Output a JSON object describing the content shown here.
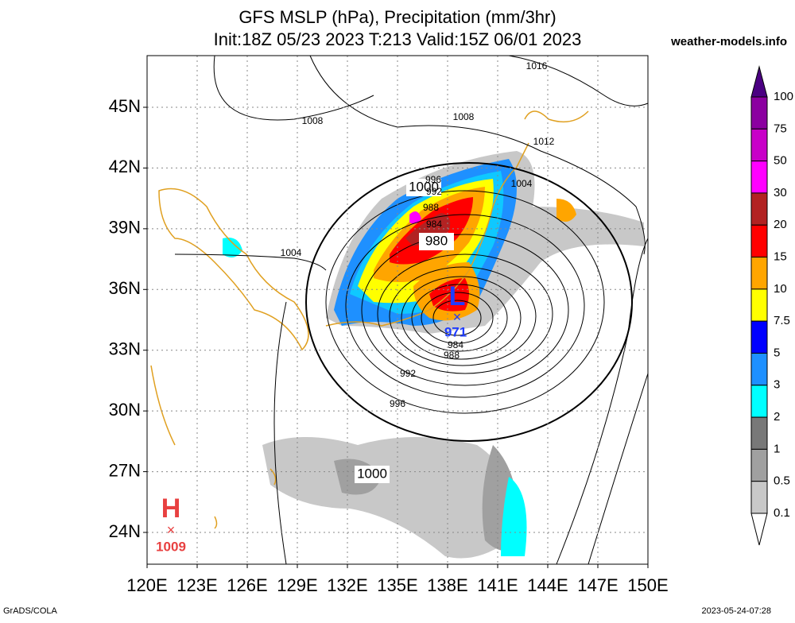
{
  "header": {
    "title": "GFS MSLP (hPa), Precipitation (mm/3hr)",
    "subtitle": "Init:18Z 05/23 2023 T:213 Valid:15Z 06/01 2023",
    "site": "weather-models.info"
  },
  "map": {
    "lon_labels": [
      "120E",
      "123E",
      "126E",
      "129E",
      "132E",
      "135E",
      "138E",
      "141E",
      "144E",
      "147E",
      "150E"
    ],
    "lat_labels": [
      "45N",
      "42N",
      "39N",
      "36N",
      "33N",
      "30N",
      "27N",
      "24N"
    ],
    "contour_labels": [
      "1016",
      "1008",
      "1008",
      "1012",
      "1004",
      "1000",
      "996",
      "992",
      "988",
      "984",
      "980",
      "1004",
      "984",
      "988",
      "992",
      "996",
      "1000"
    ],
    "low": {
      "symbol": "L",
      "value": "971"
    },
    "high": {
      "symbol": "H",
      "value": "1009"
    }
  },
  "colorbar": {
    "labels": [
      "100",
      "75",
      "50",
      "30",
      "20",
      "15",
      "10",
      "7.5",
      "5",
      "3",
      "2",
      "1",
      "0.5",
      "0.1"
    ],
    "colors": [
      "#4b0082",
      "#8b00a0",
      "#c800c8",
      "#ff00ff",
      "#b22222",
      "#ff0000",
      "#ffa500",
      "#ffff00",
      "#0000ff",
      "#1e90ff",
      "#00ffff",
      "#787878",
      "#a0a0a0",
      "#c8c8c8",
      "#ffffff"
    ]
  },
  "footer": {
    "left": "GrADS/COLA",
    "right": "2023-05-24-07:28"
  }
}
